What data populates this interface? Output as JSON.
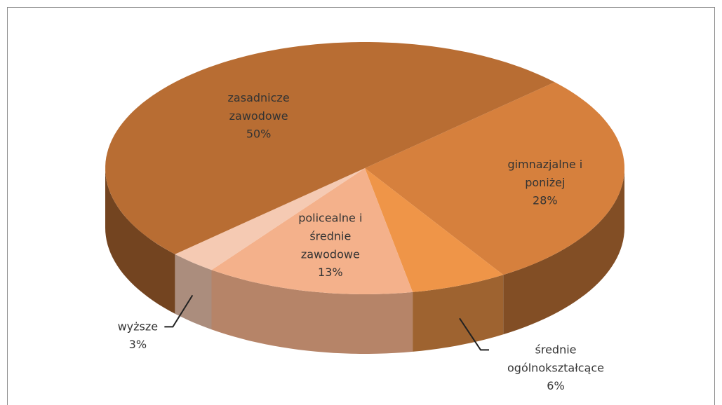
{
  "chart_data": {
    "type": "pie",
    "categories": [
      "gimnazjalne i poniżej",
      "średnie ogólnokształcące",
      "policealne i średnie zawodowe",
      "wyższe",
      "zasadnicze zawodowe"
    ],
    "values": [
      28,
      6,
      13,
      3,
      50
    ],
    "value_labels": [
      "28%",
      "6%",
      "13%",
      "3%",
      "50%"
    ],
    "colors": [
      "#d6803d",
      "#ef9548",
      "#f4b18b",
      "#f5cab3",
      "#b86d33"
    ]
  }
}
